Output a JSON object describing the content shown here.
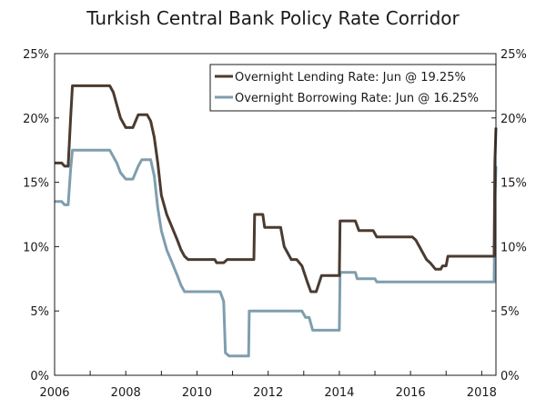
{
  "chart_data": {
    "type": "line",
    "title": "Turkish Central Bank Policy Rate Corridor",
    "xlabel": "",
    "ylabel": "",
    "xlim": [
      2006.0,
      2018.4
    ],
    "ylim": [
      0,
      25
    ],
    "x_ticks": [
      2006,
      2008,
      2010,
      2012,
      2014,
      2016,
      2018
    ],
    "x_tick_labels": [
      "2006",
      "2008",
      "2010",
      "2012",
      "2014",
      "2016",
      "2018"
    ],
    "y_ticks": [
      0,
      5,
      10,
      15,
      20,
      25
    ],
    "y_tick_labels": [
      "0%",
      "5%",
      "10%",
      "15%",
      "20%",
      "25%"
    ],
    "legend_position": "top-right",
    "series": [
      {
        "name": "Overnight Lending Rate: Jun @ 19.25%",
        "color": "#4a3b31",
        "points": [
          [
            2006.0,
            16.5
          ],
          [
            2006.2,
            16.5
          ],
          [
            2006.28,
            16.25
          ],
          [
            2006.38,
            16.25
          ],
          [
            2006.45,
            20.0
          ],
          [
            2006.5,
            22.5
          ],
          [
            2007.55,
            22.5
          ],
          [
            2007.65,
            22.0
          ],
          [
            2007.75,
            21.0
          ],
          [
            2007.85,
            20.0
          ],
          [
            2008.0,
            19.25
          ],
          [
            2008.2,
            19.25
          ],
          [
            2008.35,
            20.25
          ],
          [
            2008.6,
            20.25
          ],
          [
            2008.7,
            19.75
          ],
          [
            2008.8,
            18.5
          ],
          [
            2008.9,
            16.5
          ],
          [
            2009.0,
            14.0
          ],
          [
            2009.15,
            12.5
          ],
          [
            2009.3,
            11.5
          ],
          [
            2009.45,
            10.5
          ],
          [
            2009.55,
            9.75
          ],
          [
            2009.65,
            9.25
          ],
          [
            2009.75,
            9.0
          ],
          [
            2010.5,
            9.0
          ],
          [
            2010.55,
            8.75
          ],
          [
            2010.75,
            8.75
          ],
          [
            2010.85,
            9.0
          ],
          [
            2011.6,
            9.0
          ],
          [
            2011.62,
            12.5
          ],
          [
            2011.85,
            12.5
          ],
          [
            2011.9,
            11.5
          ],
          [
            2012.35,
            11.5
          ],
          [
            2012.45,
            10.0
          ],
          [
            2012.55,
            9.5
          ],
          [
            2012.65,
            9.0
          ],
          [
            2012.8,
            9.0
          ],
          [
            2012.95,
            8.5
          ],
          [
            2013.1,
            7.25
          ],
          [
            2013.2,
            6.5
          ],
          [
            2013.35,
            6.5
          ],
          [
            2013.5,
            7.75
          ],
          [
            2014.0,
            7.75
          ],
          [
            2014.02,
            12.0
          ],
          [
            2014.45,
            12.0
          ],
          [
            2014.55,
            11.25
          ],
          [
            2014.95,
            11.25
          ],
          [
            2015.05,
            10.75
          ],
          [
            2016.05,
            10.75
          ],
          [
            2016.15,
            10.5
          ],
          [
            2016.25,
            10.0
          ],
          [
            2016.35,
            9.5
          ],
          [
            2016.45,
            9.0
          ],
          [
            2016.55,
            8.75
          ],
          [
            2016.7,
            8.25
          ],
          [
            2016.85,
            8.25
          ],
          [
            2016.9,
            8.5
          ],
          [
            2017.0,
            8.5
          ],
          [
            2017.05,
            9.25
          ],
          [
            2018.35,
            9.25
          ],
          [
            2018.37,
            16.5
          ],
          [
            2018.4,
            19.25
          ]
        ]
      },
      {
        "name": "Overnight Borrowing Rate: Jun @ 16.25%",
        "color": "#7f9eae",
        "points": [
          [
            2006.0,
            13.5
          ],
          [
            2006.2,
            13.5
          ],
          [
            2006.28,
            13.25
          ],
          [
            2006.38,
            13.25
          ],
          [
            2006.45,
            16.0
          ],
          [
            2006.5,
            17.5
          ],
          [
            2007.55,
            17.5
          ],
          [
            2007.65,
            17.0
          ],
          [
            2007.75,
            16.5
          ],
          [
            2007.85,
            15.75
          ],
          [
            2008.0,
            15.25
          ],
          [
            2008.2,
            15.25
          ],
          [
            2008.35,
            16.25
          ],
          [
            2008.45,
            16.75
          ],
          [
            2008.7,
            16.75
          ],
          [
            2008.8,
            15.5
          ],
          [
            2008.9,
            13.0
          ],
          [
            2009.0,
            11.25
          ],
          [
            2009.15,
            9.75
          ],
          [
            2009.3,
            8.75
          ],
          [
            2009.45,
            7.75
          ],
          [
            2009.55,
            7.0
          ],
          [
            2009.65,
            6.5
          ],
          [
            2010.65,
            6.5
          ],
          [
            2010.75,
            5.75
          ],
          [
            2010.8,
            1.75
          ],
          [
            2010.9,
            1.5
          ],
          [
            2011.45,
            1.5
          ],
          [
            2011.47,
            5.0
          ],
          [
            2012.95,
            5.0
          ],
          [
            2013.05,
            4.5
          ],
          [
            2013.15,
            4.5
          ],
          [
            2013.25,
            3.5
          ],
          [
            2014.0,
            3.5
          ],
          [
            2014.02,
            8.0
          ],
          [
            2014.45,
            8.0
          ],
          [
            2014.5,
            7.5
          ],
          [
            2015.0,
            7.5
          ],
          [
            2015.05,
            7.25
          ],
          [
            2018.35,
            7.25
          ],
          [
            2018.37,
            13.5
          ],
          [
            2018.4,
            16.25
          ]
        ]
      }
    ]
  }
}
